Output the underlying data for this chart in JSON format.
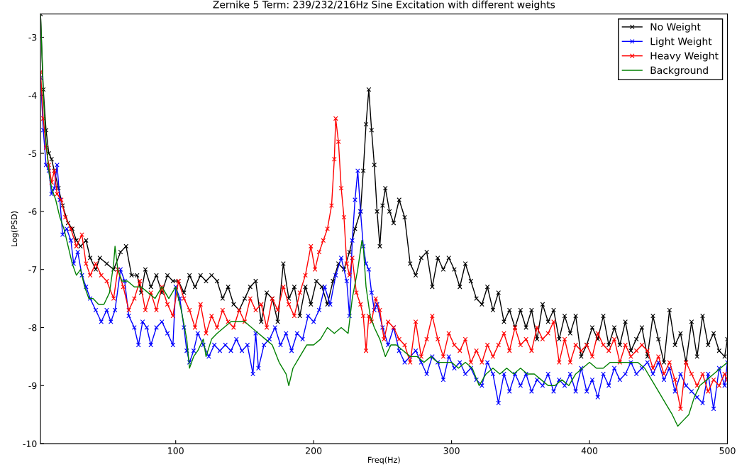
{
  "chart_data": {
    "type": "line",
    "title": "Zernike 5 Term: 239/232/216Hz Sine Excitation with different weights",
    "xlabel": "Freq(Hz)",
    "ylabel": "Log(PSD)",
    "xlim": [
      2,
      500
    ],
    "ylim": [
      -10,
      -2.6
    ],
    "xticks": [
      100,
      200,
      300,
      400,
      500
    ],
    "yticks": [
      -10,
      -9,
      -8,
      -7,
      -6,
      -5,
      -4,
      -3
    ],
    "grid": false,
    "legend": "top right",
    "line_style": "solid",
    "series": [
      {
        "name": "No Weight",
        "color": "#000000",
        "marker": "cross",
        "x": [
          2,
          4,
          6,
          8,
          10,
          12,
          15,
          18,
          22,
          25,
          28,
          31,
          35,
          38,
          42,
          45,
          50,
          55,
          60,
          64,
          68,
          72,
          75,
          78,
          82,
          86,
          90,
          94,
          98,
          102,
          106,
          110,
          114,
          118,
          122,
          126,
          130,
          134,
          138,
          142,
          146,
          150,
          154,
          158,
          162,
          166,
          170,
          174,
          178,
          182,
          186,
          190,
          194,
          198,
          202,
          206,
          210,
          214,
          218,
          222,
          226,
          230,
          234,
          236,
          238,
          240,
          242,
          244,
          246,
          248,
          250,
          252,
          255,
          258,
          262,
          266,
          270,
          274,
          278,
          282,
          286,
          290,
          294,
          298,
          302,
          306,
          310,
          314,
          318,
          322,
          326,
          330,
          334,
          338,
          342,
          346,
          350,
          354,
          358,
          362,
          366,
          370,
          374,
          378,
          382,
          386,
          390,
          394,
          398,
          402,
          406,
          410,
          414,
          418,
          422,
          426,
          430,
          434,
          438,
          442,
          446,
          450,
          454,
          458,
          462,
          466,
          470,
          474,
          478,
          482,
          486,
          490,
          494,
          498,
          500
        ],
        "values": [
          -2.6,
          -3.9,
          -4.6,
          -5.0,
          -5.1,
          -5.3,
          -5.6,
          -5.9,
          -6.2,
          -6.3,
          -6.5,
          -6.6,
          -6.5,
          -6.8,
          -7.0,
          -6.8,
          -6.9,
          -7.0,
          -6.7,
          -6.6,
          -7.1,
          -7.1,
          -7.4,
          -7.0,
          -7.3,
          -7.1,
          -7.4,
          -7.1,
          -7.2,
          -7.2,
          -7.4,
          -7.1,
          -7.3,
          -7.1,
          -7.2,
          -7.1,
          -7.2,
          -7.5,
          -7.3,
          -7.6,
          -7.7,
          -7.5,
          -7.3,
          -7.2,
          -7.9,
          -7.4,
          -7.5,
          -7.9,
          -6.9,
          -7.5,
          -7.3,
          -7.8,
          -7.3,
          -7.6,
          -7.2,
          -7.3,
          -7.6,
          -7.2,
          -6.9,
          -7.0,
          -6.7,
          -6.3,
          -6.0,
          -5.3,
          -4.5,
          -3.9,
          -4.6,
          -5.2,
          -6.0,
          -6.6,
          -5.9,
          -5.6,
          -6.0,
          -6.2,
          -5.8,
          -6.1,
          -6.9,
          -7.1,
          -6.8,
          -6.7,
          -7.3,
          -6.8,
          -7.0,
          -6.8,
          -7.0,
          -7.3,
          -6.9,
          -7.2,
          -7.5,
          -7.6,
          -7.3,
          -7.7,
          -7.4,
          -7.9,
          -7.7,
          -8.0,
          -7.7,
          -8.0,
          -7.7,
          -8.2,
          -7.6,
          -7.9,
          -7.7,
          -8.2,
          -7.8,
          -8.1,
          -7.8,
          -8.5,
          -8.3,
          -8.0,
          -8.2,
          -7.8,
          -8.3,
          -8.0,
          -8.3,
          -7.9,
          -8.4,
          -8.2,
          -8.0,
          -8.5,
          -7.8,
          -8.2,
          -8.6,
          -7.7,
          -8.3,
          -8.1,
          -8.6,
          -7.9,
          -8.5,
          -7.8,
          -8.3,
          -8.1,
          -8.4,
          -8.5,
          -8.2
        ]
      },
      {
        "name": "Light Weight",
        "color": "#0000ff",
        "marker": "cross",
        "x": [
          2,
          4,
          6,
          8,
          10,
          12,
          14,
          16,
          18,
          21,
          24,
          26,
          29,
          32,
          35,
          38,
          42,
          46,
          50,
          53,
          56,
          60,
          63,
          66,
          70,
          73,
          76,
          79,
          82,
          86,
          90,
          94,
          98,
          100,
          103,
          106,
          108,
          110,
          113,
          116,
          120,
          124,
          128,
          132,
          136,
          140,
          144,
          148,
          152,
          156,
          158,
          160,
          164,
          168,
          172,
          176,
          180,
          184,
          188,
          192,
          196,
          200,
          204,
          208,
          212,
          216,
          220,
          224,
          226,
          228,
          230,
          232,
          234,
          236,
          238,
          240,
          242,
          244,
          246,
          250,
          254,
          258,
          262,
          266,
          270,
          274,
          278,
          282,
          286,
          290,
          294,
          298,
          302,
          306,
          310,
          314,
          318,
          322,
          326,
          330,
          334,
          338,
          342,
          346,
          350,
          354,
          358,
          362,
          366,
          370,
          374,
          378,
          382,
          386,
          390,
          394,
          398,
          402,
          406,
          410,
          414,
          418,
          422,
          426,
          430,
          434,
          438,
          442,
          446,
          450,
          454,
          458,
          462,
          466,
          470,
          474,
          478,
          482,
          486,
          490,
          494,
          498,
          500
        ],
        "values": [
          -3.7,
          -4.6,
          -5.2,
          -5.3,
          -5.7,
          -5.6,
          -5.2,
          -5.8,
          -6.4,
          -6.3,
          -6.5,
          -6.9,
          -6.7,
          -7.1,
          -7.3,
          -7.5,
          -7.7,
          -7.9,
          -7.7,
          -7.9,
          -7.7,
          -7.0,
          -7.2,
          -7.8,
          -8.0,
          -8.3,
          -7.9,
          -8.0,
          -8.3,
          -8.0,
          -7.9,
          -8.1,
          -8.3,
          -7.3,
          -7.5,
          -8.0,
          -8.4,
          -8.6,
          -8.4,
          -8.1,
          -8.3,
          -8.5,
          -8.3,
          -8.4,
          -8.3,
          -8.4,
          -8.2,
          -8.4,
          -8.3,
          -8.8,
          -8.1,
          -8.7,
          -8.3,
          -8.2,
          -8.0,
          -8.3,
          -8.1,
          -8.4,
          -8.1,
          -8.2,
          -7.8,
          -7.9,
          -7.7,
          -7.3,
          -7.6,
          -7.1,
          -6.8,
          -7.2,
          -7.8,
          -6.5,
          -5.8,
          -5.3,
          -6.0,
          -6.6,
          -6.9,
          -7.0,
          -7.4,
          -7.7,
          -7.6,
          -8.0,
          -8.3,
          -8.0,
          -8.4,
          -8.6,
          -8.5,
          -8.4,
          -8.6,
          -8.8,
          -8.5,
          -8.6,
          -8.9,
          -8.5,
          -8.7,
          -8.6,
          -8.8,
          -8.7,
          -8.9,
          -9.0,
          -8.6,
          -8.8,
          -9.3,
          -8.8,
          -9.1,
          -8.8,
          -9.0,
          -8.8,
          -9.1,
          -8.9,
          -9.0,
          -8.8,
          -9.1,
          -8.9,
          -9.0,
          -8.8,
          -9.1,
          -8.7,
          -9.1,
          -8.9,
          -9.2,
          -8.8,
          -9.0,
          -8.7,
          -8.9,
          -8.8,
          -8.6,
          -8.8,
          -8.7,
          -8.6,
          -8.8,
          -8.6,
          -8.9,
          -8.7,
          -9.1,
          -8.8,
          -9.0,
          -9.1,
          -9.2,
          -9.3,
          -8.8,
          -9.4,
          -8.7,
          -9.0,
          -8.6
        ]
      },
      {
        "name": "Heavy Weight",
        "color": "#ff0000",
        "marker": "cross",
        "x": [
          2,
          4,
          6,
          8,
          10,
          12,
          14,
          17,
          20,
          24,
          28,
          32,
          35,
          38,
          42,
          46,
          50,
          55,
          58,
          62,
          66,
          70,
          74,
          78,
          82,
          86,
          90,
          94,
          98,
          102,
          106,
          110,
          114,
          118,
          122,
          126,
          130,
          134,
          138,
          142,
          146,
          150,
          154,
          158,
          162,
          166,
          170,
          174,
          178,
          182,
          186,
          190,
          194,
          198,
          201,
          204,
          207,
          210,
          213,
          215,
          216,
          218,
          220,
          222,
          224,
          226,
          228,
          231,
          234,
          236,
          238,
          240,
          242,
          245,
          248,
          251,
          254,
          258,
          262,
          266,
          270,
          274,
          278,
          282,
          286,
          290,
          294,
          298,
          302,
          306,
          310,
          314,
          318,
          322,
          326,
          330,
          334,
          338,
          342,
          346,
          350,
          354,
          358,
          362,
          366,
          370,
          374,
          378,
          382,
          386,
          390,
          394,
          398,
          402,
          406,
          410,
          414,
          418,
          422,
          426,
          430,
          434,
          438,
          442,
          446,
          450,
          454,
          458,
          462,
          466,
          470,
          474,
          478,
          482,
          486,
          490,
          494,
          498,
          500
        ],
        "values": [
          -3.6,
          -4.4,
          -4.9,
          -5.2,
          -5.5,
          -5.3,
          -5.7,
          -5.8,
          -6.1,
          -6.3,
          -6.6,
          -6.4,
          -6.9,
          -7.1,
          -6.9,
          -7.1,
          -7.2,
          -7.5,
          -7.0,
          -7.3,
          -7.7,
          -7.5,
          -7.2,
          -7.7,
          -7.4,
          -7.7,
          -7.3,
          -7.6,
          -7.8,
          -7.2,
          -7.5,
          -7.7,
          -8.0,
          -7.6,
          -8.1,
          -7.8,
          -8.0,
          -7.7,
          -7.9,
          -8.0,
          -7.7,
          -7.9,
          -7.5,
          -7.7,
          -7.6,
          -8.0,
          -7.5,
          -7.7,
          -7.3,
          -7.6,
          -7.8,
          -7.4,
          -7.1,
          -6.6,
          -7.0,
          -6.7,
          -6.5,
          -6.3,
          -5.9,
          -5.1,
          -4.4,
          -4.8,
          -5.6,
          -6.1,
          -6.9,
          -7.1,
          -6.8,
          -7.4,
          -7.6,
          -7.8,
          -8.4,
          -7.8,
          -7.9,
          -7.5,
          -7.7,
          -8.2,
          -7.9,
          -8.0,
          -8.2,
          -8.3,
          -8.6,
          -7.9,
          -8.5,
          -8.2,
          -7.8,
          -8.2,
          -8.5,
          -8.1,
          -8.3,
          -8.4,
          -8.2,
          -8.6,
          -8.4,
          -8.6,
          -8.3,
          -8.5,
          -8.3,
          -8.1,
          -8.4,
          -8.0,
          -8.3,
          -8.2,
          -8.4,
          -8.0,
          -8.2,
          -8.1,
          -7.9,
          -8.6,
          -8.2,
          -8.6,
          -8.3,
          -8.4,
          -8.3,
          -8.5,
          -8.1,
          -8.3,
          -8.4,
          -8.2,
          -8.6,
          -8.3,
          -8.5,
          -8.4,
          -8.3,
          -8.4,
          -8.7,
          -8.5,
          -8.8,
          -8.6,
          -8.9,
          -9.4,
          -8.6,
          -8.8,
          -9.0,
          -8.8,
          -9.1,
          -8.9,
          -9.0,
          -8.8,
          -8.9
        ]
      },
      {
        "name": "Background",
        "color": "#008000",
        "marker": "none",
        "x": [
          2,
          4,
          6,
          8,
          10,
          13,
          16,
          19,
          22,
          25,
          28,
          31,
          34,
          37,
          40,
          44,
          48,
          52,
          55,
          56,
          58,
          61,
          65,
          70,
          75,
          80,
          85,
          90,
          95,
          100,
          104,
          108,
          110,
          113,
          116,
          120,
          122,
          126,
          130,
          135,
          140,
          145,
          150,
          155,
          160,
          165,
          170,
          175,
          180,
          182,
          185,
          190,
          195,
          200,
          205,
          210,
          215,
          220,
          225,
          228,
          232,
          235,
          236,
          238,
          241,
          244,
          248,
          252,
          256,
          260,
          265,
          270,
          275,
          280,
          285,
          290,
          295,
          300,
          305,
          310,
          315,
          320,
          325,
          330,
          335,
          340,
          345,
          350,
          355,
          360,
          365,
          370,
          375,
          380,
          385,
          390,
          395,
          400,
          405,
          410,
          415,
          420,
          425,
          430,
          435,
          440,
          445,
          450,
          455,
          460,
          464,
          468,
          472,
          476,
          480,
          485,
          490,
          495,
          500
        ],
        "values": [
          -2.6,
          -4.0,
          -4.8,
          -5.3,
          -5.6,
          -5.8,
          -6.1,
          -6.3,
          -6.6,
          -6.9,
          -7.1,
          -7.0,
          -7.3,
          -7.5,
          -7.5,
          -7.6,
          -7.6,
          -7.4,
          -6.9,
          -6.6,
          -7.0,
          -7.2,
          -7.2,
          -7.3,
          -7.3,
          -7.4,
          -7.5,
          -7.3,
          -7.5,
          -7.3,
          -7.7,
          -8.2,
          -8.7,
          -8.5,
          -8.4,
          -8.2,
          -8.5,
          -8.2,
          -8.1,
          -8.0,
          -7.9,
          -7.9,
          -7.9,
          -8.0,
          -8.1,
          -8.2,
          -8.3,
          -8.6,
          -8.8,
          -9.0,
          -8.7,
          -8.5,
          -8.3,
          -8.3,
          -8.2,
          -8.0,
          -8.1,
          -8.0,
          -8.1,
          -7.5,
          -7.0,
          -6.5,
          -6.6,
          -7.3,
          -7.8,
          -8.0,
          -8.2,
          -8.5,
          -8.3,
          -8.3,
          -8.4,
          -8.5,
          -8.5,
          -8.6,
          -8.5,
          -8.6,
          -8.6,
          -8.6,
          -8.7,
          -8.6,
          -8.7,
          -9.0,
          -8.8,
          -8.7,
          -8.8,
          -8.7,
          -8.8,
          -8.7,
          -8.8,
          -8.8,
          -8.9,
          -9.0,
          -9.0,
          -8.9,
          -9.0,
          -8.8,
          -8.7,
          -8.6,
          -8.7,
          -8.7,
          -8.6,
          -8.6,
          -8.6,
          -8.6,
          -8.6,
          -8.7,
          -8.9,
          -9.1,
          -9.3,
          -9.5,
          -9.7,
          -9.6,
          -9.5,
          -9.2,
          -9.0,
          -8.9,
          -8.8,
          -8.7,
          -8.6
        ]
      }
    ]
  }
}
